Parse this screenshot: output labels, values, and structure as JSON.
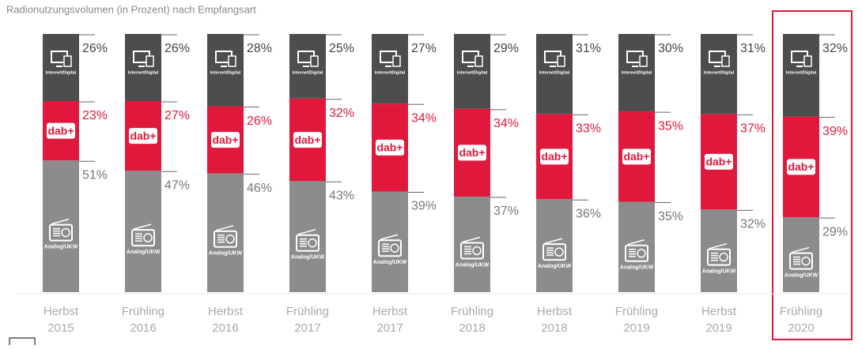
{
  "chart_data": {
    "type": "stacked_bar",
    "title": "Radionutzungsvolumen (in Prozent) nach Empfangsart",
    "categories": [
      [
        "Herbst",
        "2015"
      ],
      [
        "Frühling",
        "2016"
      ],
      [
        "Herbst",
        "2016"
      ],
      [
        "Frühling",
        "2017"
      ],
      [
        "Herbst",
        "2017"
      ],
      [
        "Frühling",
        "2018"
      ],
      [
        "Herbst",
        "2018"
      ],
      [
        "Frühling",
        "2019"
      ],
      [
        "Herbst",
        "2019"
      ],
      [
        "Frühling",
        "2020"
      ]
    ],
    "series": [
      {
        "name": "Analog/UKW",
        "color": "#8c8c8c",
        "values": [
          51,
          47,
          46,
          43,
          39,
          37,
          36,
          35,
          32,
          29
        ],
        "value_labels": [
          "51%",
          "47%",
          "46%",
          "43%",
          "39%",
          "37%",
          "36%",
          "35%",
          "32%",
          "29%"
        ]
      },
      {
        "name": "dab+",
        "color": "#e0193c",
        "values": [
          23,
          27,
          26,
          32,
          34,
          34,
          33,
          35,
          37,
          39
        ],
        "value_labels": [
          "23%",
          "27%",
          "26%",
          "32%",
          "34%",
          "34%",
          "33%",
          "35%",
          "37%",
          "39%"
        ]
      },
      {
        "name": "Internet/Digital",
        "color": "#4d4d4d",
        "values": [
          26,
          26,
          28,
          25,
          27,
          29,
          31,
          30,
          31,
          32
        ],
        "value_labels": [
          "26%",
          "26%",
          "28%",
          "25%",
          "27%",
          "29%",
          "31%",
          "30%",
          "31%",
          "32%"
        ]
      }
    ],
    "ylim": [
      0,
      100
    ]
  }
}
